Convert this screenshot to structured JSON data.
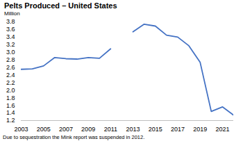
{
  "chart_data": {
    "type": "line",
    "title": "Pelts Produced – United States",
    "subtitle": "Million",
    "caption": "Due to sequestration the Mink report was suspended in 2012.",
    "x": [
      2003,
      2004,
      2005,
      2006,
      2007,
      2008,
      2009,
      2010,
      2011,
      2012,
      2013,
      2014,
      2015,
      2016,
      2017,
      2018,
      2019,
      2020,
      2021,
      2022
    ],
    "values": [
      2.55,
      2.56,
      2.64,
      2.86,
      2.83,
      2.82,
      2.86,
      2.84,
      3.09,
      null,
      3.54,
      3.74,
      3.69,
      3.45,
      3.4,
      3.17,
      2.74,
      1.44,
      1.56,
      1.34
    ],
    "color": "#4472c4",
    "xlim": [
      2003,
      2022
    ],
    "xticks": [
      2003,
      2005,
      2007,
      2009,
      2011,
      2013,
      2015,
      2017,
      2019,
      2021
    ],
    "ylim": [
      1.2,
      3.8
    ],
    "yticks": [
      1.2,
      1.4,
      1.6,
      1.8,
      {
        "value": 2,
        "label": "2.0"
      },
      2.2,
      2.4,
      2.6,
      2.8,
      {
        "value": 3,
        "label": "3.0"
      },
      3.2,
      3.4,
      3.6,
      3.8
    ],
    "grid": false
  }
}
